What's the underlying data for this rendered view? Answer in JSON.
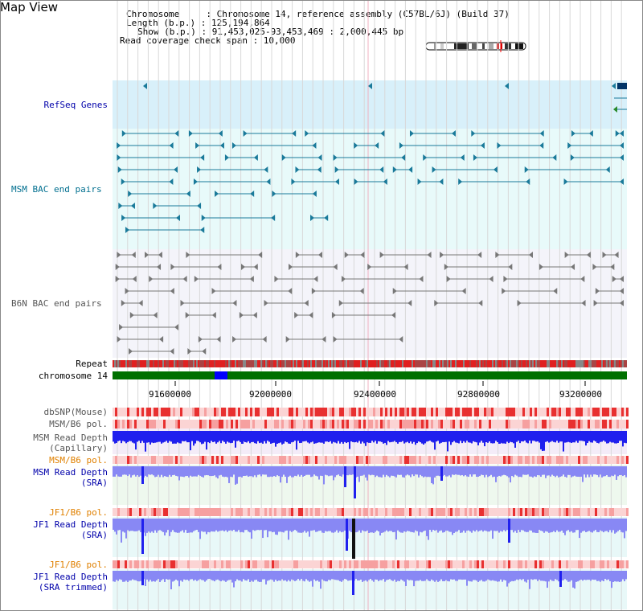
{
  "title": "Map View",
  "info": {
    "chromosome_line": "Chromosome     : Chromosome 14, reference assembly (C57BL/6J) (Build 37)",
    "length_line": "Length (b.p.) : 125,194,864",
    "show_line": "Show (b.p.) : 91,453,025-93,453,469 : 2,000,445 bp",
    "coverage_line": "Read coverage check span : 10,000"
  },
  "tracks": {
    "refseq": "RefSeq Genes",
    "msm_bac": "MSM BAC end pairs",
    "b6n_bac": "B6N BAC end pairs",
    "repeat": "Repeat",
    "chromosome": "chromosome 14",
    "dbsnp": "dbSNP(Mouse)",
    "msm_b6_pol_1": "MSM/B6 pol.",
    "msm_read_depth_cap_1": "MSM Read Depth",
    "msm_read_depth_cap_2": "(Capillary)",
    "msm_b6_pol_2": "MSM/B6 pol.",
    "msm_read_depth_sra_1": "MSM Read Depth",
    "msm_read_depth_sra_2": "(SRA)",
    "jf1_b6_pol_1": "JF1/B6 pol.",
    "jf1_read_depth_sra_1": "JF1 Read Depth",
    "jf1_read_depth_sra_2": "(SRA)",
    "jf1_b6_pol_2": "JF1/B6 pol.",
    "jf1_read_depth_trim_1": "JF1 Read Depth",
    "jf1_read_depth_trim_2": "(SRA trimmed)"
  },
  "axis": {
    "ticks": [
      "91600000",
      "92000000",
      "92400000",
      "92800000",
      "93200000"
    ]
  },
  "colors": {
    "refseq_bg": "#d8f0fa",
    "msm_bg": "#e8fafa",
    "b6n_bg": "#f4f4fa",
    "cyan_mark": "#1a7a9a",
    "gray_mark": "#777777",
    "depth_blue": "#2020ee",
    "depth_light": "#8888f4",
    "chrom_green": "#007000",
    "chrom_blue": "#0000ff",
    "label_blue": "#0000aa",
    "label_orange": "#e08000",
    "label_cyan": "#006f8f"
  }
}
